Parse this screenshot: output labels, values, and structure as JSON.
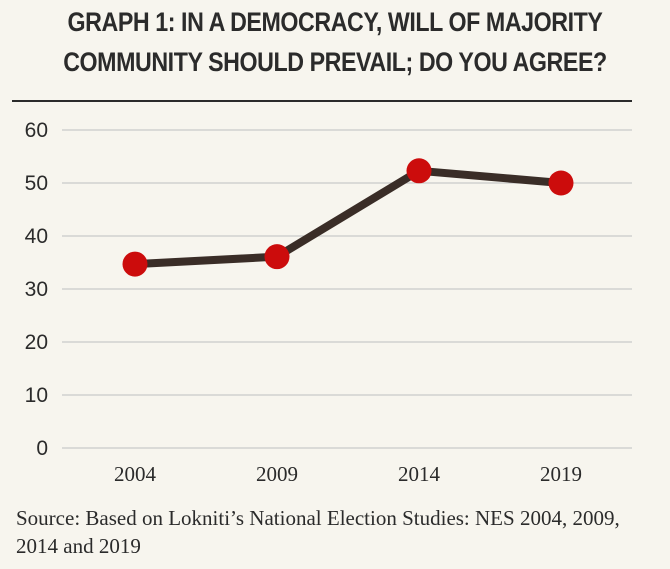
{
  "title": "GRAPH 1: IN A DEMOCRACY, WILL OF MAJORITY COMMUNITY SHOULD PREVAIL; DO YOU AGREE?",
  "source": "Source: Based on Lokniti’s National Election Studies: NES 2004, 2009, 2014 and 2019",
  "colors": {
    "line": "#3a2d27",
    "marker": "#cc0c0c",
    "grid": "#c9c9c9",
    "text": "#2b2b2b"
  },
  "chart_data": {
    "type": "line",
    "categories": [
      "2004",
      "2009",
      "2014",
      "2019"
    ],
    "series": [
      {
        "values": [
          34.7,
          36.1,
          52.3,
          50.0
        ]
      }
    ],
    "ylim": [
      0,
      60
    ],
    "yticks": [
      "0",
      "10",
      "20",
      "30",
      "40",
      "50",
      "60"
    ],
    "xlabel": "",
    "ylabel": "",
    "grid": true
  }
}
